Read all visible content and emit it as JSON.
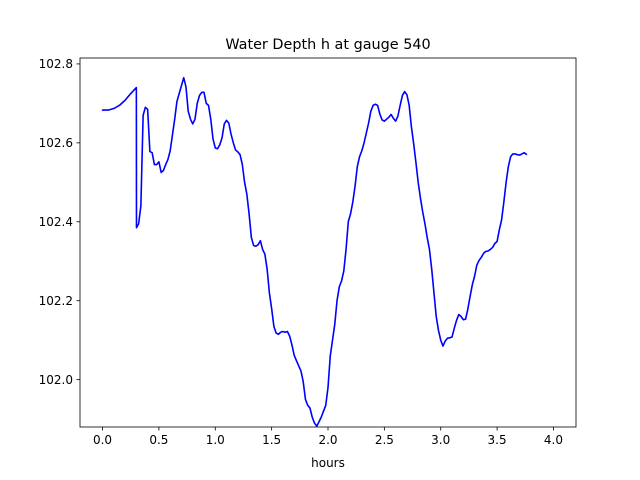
{
  "chart_data": {
    "type": "line",
    "title": "Water Depth h at gauge 540",
    "xlabel": "hours",
    "ylabel": "",
    "xlim": [
      -0.2,
      4.2
    ],
    "ylim": [
      101.88,
      102.815
    ],
    "x_ticks": [
      0.0,
      0.5,
      1.0,
      1.5,
      2.0,
      2.5,
      3.0,
      3.5,
      4.0
    ],
    "x_tick_labels": [
      "0.0",
      "0.5",
      "1.0",
      "1.5",
      "2.0",
      "2.5",
      "3.0",
      "3.5",
      "4.0"
    ],
    "y_ticks": [
      102.0,
      102.2,
      102.4,
      102.6,
      102.8
    ],
    "y_tick_labels": [
      "102.0",
      "102.2",
      "102.4",
      "102.6",
      "102.8"
    ],
    "grid": false,
    "series": [
      {
        "color": "#0000ff",
        "points": [
          [
            0.0,
            102.683
          ],
          [
            0.05,
            102.683
          ],
          [
            0.1,
            102.687
          ],
          [
            0.15,
            102.695
          ],
          [
            0.2,
            102.708
          ],
          [
            0.25,
            102.725
          ],
          [
            0.3,
            102.74
          ],
          [
            0.301,
            102.385
          ],
          [
            0.32,
            102.395
          ],
          [
            0.34,
            102.44
          ],
          [
            0.36,
            102.67
          ],
          [
            0.38,
            102.69
          ],
          [
            0.4,
            102.685
          ],
          [
            0.42,
            102.578
          ],
          [
            0.44,
            102.575
          ],
          [
            0.46,
            102.545
          ],
          [
            0.48,
            102.545
          ],
          [
            0.5,
            102.552
          ],
          [
            0.52,
            102.525
          ],
          [
            0.54,
            102.53
          ],
          [
            0.56,
            102.545
          ],
          [
            0.58,
            102.558
          ],
          [
            0.6,
            102.58
          ],
          [
            0.62,
            102.62
          ],
          [
            0.64,
            102.66
          ],
          [
            0.66,
            102.705
          ],
          [
            0.68,
            102.725
          ],
          [
            0.7,
            102.745
          ],
          [
            0.72,
            102.765
          ],
          [
            0.74,
            102.742
          ],
          [
            0.76,
            102.68
          ],
          [
            0.78,
            102.66
          ],
          [
            0.8,
            102.648
          ],
          [
            0.82,
            102.66
          ],
          [
            0.84,
            102.7
          ],
          [
            0.86,
            102.72
          ],
          [
            0.88,
            102.728
          ],
          [
            0.9,
            102.728
          ],
          [
            0.92,
            102.7
          ],
          [
            0.94,
            102.695
          ],
          [
            0.96,
            102.66
          ],
          [
            0.98,
            102.61
          ],
          [
            1.0,
            102.587
          ],
          [
            1.02,
            102.585
          ],
          [
            1.04,
            102.595
          ],
          [
            1.06,
            102.613
          ],
          [
            1.08,
            102.648
          ],
          [
            1.1,
            102.657
          ],
          [
            1.12,
            102.65
          ],
          [
            1.14,
            102.622
          ],
          [
            1.16,
            102.6
          ],
          [
            1.18,
            102.582
          ],
          [
            1.2,
            102.577
          ],
          [
            1.22,
            102.57
          ],
          [
            1.24,
            102.545
          ],
          [
            1.26,
            102.5
          ],
          [
            1.28,
            102.47
          ],
          [
            1.3,
            102.42
          ],
          [
            1.32,
            102.36
          ],
          [
            1.34,
            102.34
          ],
          [
            1.36,
            102.338
          ],
          [
            1.38,
            102.342
          ],
          [
            1.4,
            102.352
          ],
          [
            1.42,
            102.33
          ],
          [
            1.44,
            102.318
          ],
          [
            1.46,
            102.28
          ],
          [
            1.48,
            102.22
          ],
          [
            1.5,
            102.18
          ],
          [
            1.52,
            102.135
          ],
          [
            1.54,
            102.118
          ],
          [
            1.56,
            102.115
          ],
          [
            1.58,
            102.12
          ],
          [
            1.6,
            102.122
          ],
          [
            1.62,
            102.12
          ],
          [
            1.64,
            102.122
          ],
          [
            1.66,
            102.11
          ],
          [
            1.68,
            102.088
          ],
          [
            1.7,
            102.062
          ],
          [
            1.72,
            102.048
          ],
          [
            1.74,
            102.035
          ],
          [
            1.76,
            102.022
          ],
          [
            1.78,
            101.995
          ],
          [
            1.8,
            101.95
          ],
          [
            1.82,
            101.935
          ],
          [
            1.84,
            101.928
          ],
          [
            1.86,
            101.905
          ],
          [
            1.88,
            101.89
          ],
          [
            1.9,
            101.882
          ],
          [
            1.92,
            101.893
          ],
          [
            1.94,
            101.905
          ],
          [
            1.96,
            101.92
          ],
          [
            1.98,
            101.935
          ],
          [
            2.0,
            101.98
          ],
          [
            2.02,
            102.06
          ],
          [
            2.04,
            102.1
          ],
          [
            2.06,
            102.14
          ],
          [
            2.08,
            102.2
          ],
          [
            2.1,
            102.235
          ],
          [
            2.12,
            102.25
          ],
          [
            2.14,
            102.275
          ],
          [
            2.16,
            102.33
          ],
          [
            2.18,
            102.4
          ],
          [
            2.2,
            102.42
          ],
          [
            2.22,
            102.45
          ],
          [
            2.24,
            102.49
          ],
          [
            2.26,
            102.54
          ],
          [
            2.28,
            102.565
          ],
          [
            2.3,
            102.58
          ],
          [
            2.32,
            102.6
          ],
          [
            2.34,
            102.625
          ],
          [
            2.36,
            102.65
          ],
          [
            2.38,
            102.68
          ],
          [
            2.4,
            102.695
          ],
          [
            2.42,
            102.698
          ],
          [
            2.44,
            102.695
          ],
          [
            2.46,
            102.673
          ],
          [
            2.48,
            102.658
          ],
          [
            2.5,
            102.655
          ],
          [
            2.52,
            102.66
          ],
          [
            2.54,
            102.665
          ],
          [
            2.56,
            102.672
          ],
          [
            2.58,
            102.662
          ],
          [
            2.6,
            102.655
          ],
          [
            2.62,
            102.668
          ],
          [
            2.64,
            102.695
          ],
          [
            2.66,
            102.72
          ],
          [
            2.68,
            102.73
          ],
          [
            2.7,
            102.722
          ],
          [
            2.72,
            102.695
          ],
          [
            2.74,
            102.64
          ],
          [
            2.76,
            102.598
          ],
          [
            2.78,
            102.55
          ],
          [
            2.8,
            102.5
          ],
          [
            2.82,
            102.46
          ],
          [
            2.84,
            102.425
          ],
          [
            2.86,
            102.395
          ],
          [
            2.88,
            102.36
          ],
          [
            2.9,
            102.33
          ],
          [
            2.92,
            102.28
          ],
          [
            2.94,
            102.22
          ],
          [
            2.96,
            102.16
          ],
          [
            2.98,
            102.125
          ],
          [
            3.0,
            102.1
          ],
          [
            3.02,
            102.085
          ],
          [
            3.04,
            102.098
          ],
          [
            3.06,
            102.105
          ],
          [
            3.08,
            102.106
          ],
          [
            3.1,
            102.108
          ],
          [
            3.12,
            102.13
          ],
          [
            3.14,
            102.15
          ],
          [
            3.16,
            102.165
          ],
          [
            3.18,
            102.16
          ],
          [
            3.2,
            102.152
          ],
          [
            3.22,
            102.153
          ],
          [
            3.24,
            102.178
          ],
          [
            3.26,
            102.21
          ],
          [
            3.28,
            102.24
          ],
          [
            3.3,
            102.262
          ],
          [
            3.32,
            102.29
          ],
          [
            3.34,
            102.302
          ],
          [
            3.36,
            102.31
          ],
          [
            3.38,
            102.32
          ],
          [
            3.4,
            102.325
          ],
          [
            3.42,
            102.326
          ],
          [
            3.44,
            102.33
          ],
          [
            3.46,
            102.335
          ],
          [
            3.48,
            102.345
          ],
          [
            3.5,
            102.35
          ],
          [
            3.52,
            102.38
          ],
          [
            3.54,
            102.405
          ],
          [
            3.56,
            102.45
          ],
          [
            3.58,
            102.5
          ],
          [
            3.6,
            102.54
          ],
          [
            3.62,
            102.565
          ],
          [
            3.64,
            102.572
          ],
          [
            3.66,
            102.572
          ],
          [
            3.68,
            102.57
          ],
          [
            3.7,
            102.569
          ],
          [
            3.72,
            102.572
          ],
          [
            3.74,
            102.575
          ],
          [
            3.76,
            102.571
          ]
        ]
      }
    ]
  }
}
